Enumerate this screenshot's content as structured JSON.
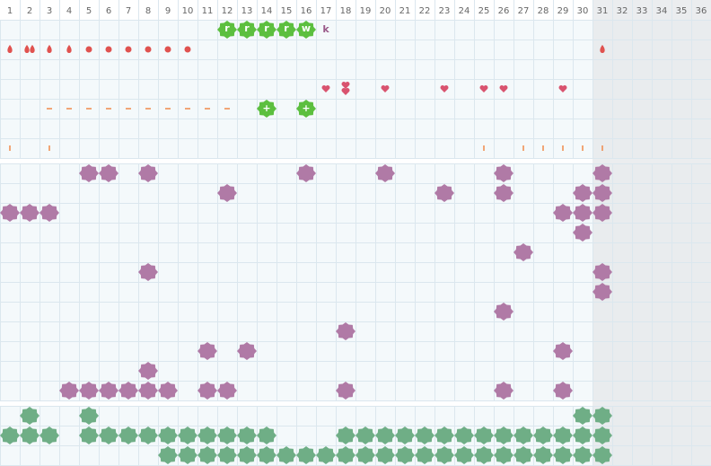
{
  "days": [
    "1",
    "2",
    "3",
    "4",
    "5",
    "6",
    "7",
    "8",
    "9",
    "10",
    "11",
    "12",
    "13",
    "14",
    "15",
    "16",
    "17",
    "18",
    "19",
    "20",
    "21",
    "22",
    "23",
    "24",
    "25",
    "26",
    "27",
    "28",
    "29",
    "30",
    "31",
    "32",
    "33",
    "34",
    "35",
    "36"
  ],
  "tracker": {
    "stamps": [
      {
        "day": 12,
        "label": "r"
      },
      {
        "day": 13,
        "label": "r"
      },
      {
        "day": 14,
        "label": "r"
      },
      {
        "day": 15,
        "label": "r"
      },
      {
        "day": 16,
        "label": "w"
      }
    ],
    "notes": [
      {
        "day": 17,
        "label": "k"
      }
    ],
    "flow": [
      {
        "day": 1,
        "kind": "drop"
      },
      {
        "day": 2,
        "kind": "double-drop"
      },
      {
        "day": 3,
        "kind": "drop"
      },
      {
        "day": 4,
        "kind": "drop"
      },
      {
        "day": 5,
        "kind": "dot"
      },
      {
        "day": 6,
        "kind": "dot"
      },
      {
        "day": 7,
        "kind": "dot"
      },
      {
        "day": 8,
        "kind": "dot"
      },
      {
        "day": 9,
        "kind": "dot"
      },
      {
        "day": 10,
        "kind": "dot"
      },
      {
        "day": 31,
        "kind": "drop"
      }
    ],
    "hearts": [
      {
        "day": 17,
        "kind": "heart"
      },
      {
        "day": 18,
        "kind": "double-heart"
      },
      {
        "day": 20,
        "kind": "heart"
      },
      {
        "day": 23,
        "kind": "heart"
      },
      {
        "day": 25,
        "kind": "heart"
      },
      {
        "day": 26,
        "kind": "heart"
      },
      {
        "day": 29,
        "kind": "heart"
      }
    ],
    "dashes": [
      3,
      4,
      5,
      6,
      7,
      8,
      9,
      10,
      11,
      12
    ],
    "plus_stamps": [
      {
        "day": 14,
        "label": "+"
      },
      {
        "day": 16,
        "label": "+"
      }
    ],
    "ticks": [
      1,
      3,
      25,
      27,
      28,
      29,
      30,
      31
    ]
  },
  "symptoms": [
    [
      5,
      6,
      8,
      16,
      20,
      26,
      31
    ],
    [
      12,
      23,
      26,
      30,
      31
    ],
    [
      1,
      2,
      3,
      29,
      30,
      31
    ],
    [
      30
    ],
    [
      27
    ],
    [
      8,
      31
    ],
    [
      31
    ],
    [
      26
    ],
    [
      18
    ],
    [
      11,
      13,
      29
    ],
    [
      8
    ],
    [
      4,
      5,
      6,
      7,
      8,
      9,
      11,
      12,
      18,
      26,
      29
    ]
  ],
  "activity": [
    [
      2,
      5,
      30,
      31
    ],
    [
      1,
      2,
      3,
      5,
      6,
      7,
      8,
      9,
      10,
      11,
      12,
      13,
      14,
      18,
      19,
      20,
      21,
      22,
      23,
      24,
      25,
      26,
      27,
      28,
      29,
      30,
      31
    ],
    [
      9,
      10,
      11,
      12,
      13,
      14,
      15,
      16,
      17,
      18,
      19,
      20,
      21,
      22,
      23,
      24,
      25,
      26,
      27,
      28,
      29,
      30,
      31
    ]
  ]
}
